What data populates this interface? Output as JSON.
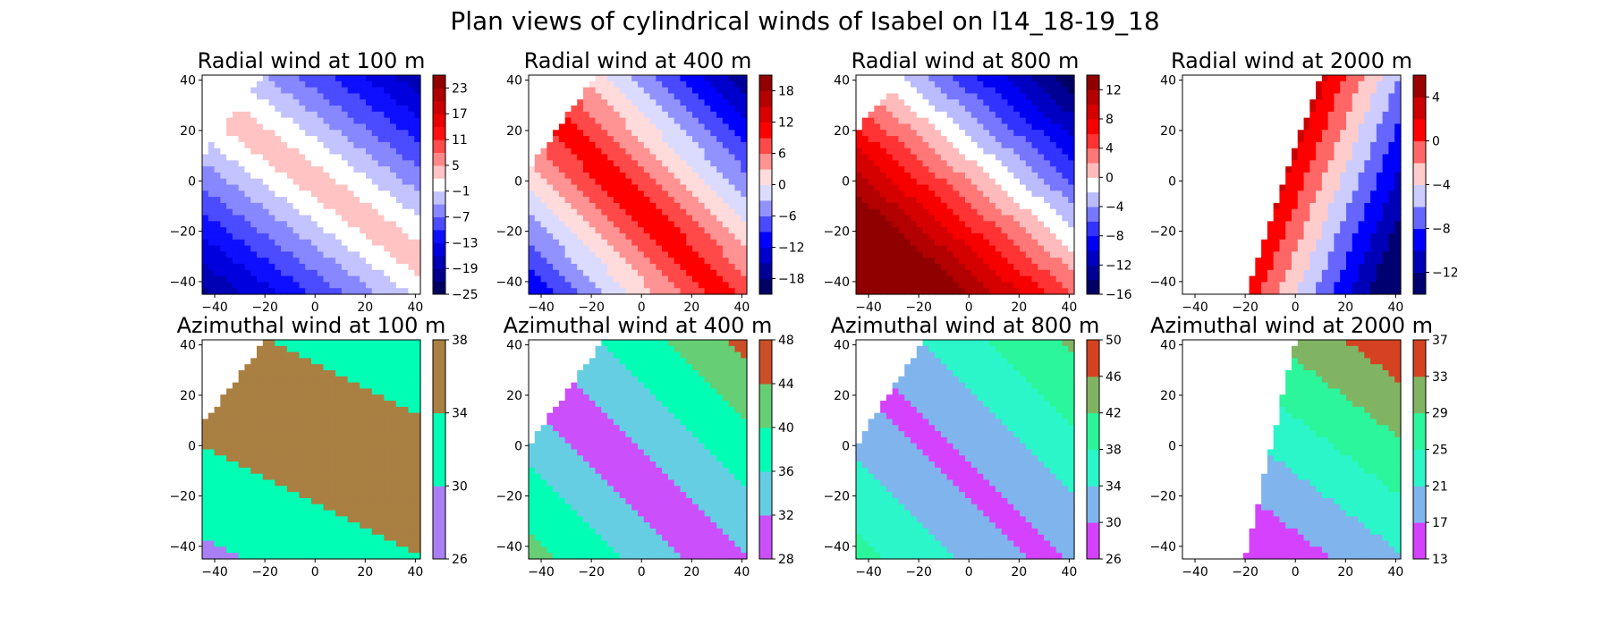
{
  "figure": {
    "title": "Plan views of cylindrical winds of Isabel on l14_18-19_18"
  },
  "chart_data": [
    {
      "type": "heatmap",
      "title": "Radial wind at 100 m",
      "xlim": [
        -45,
        42
      ],
      "ylim": [
        -45,
        42
      ],
      "xticks": [
        -40,
        -20,
        0,
        20,
        40
      ],
      "yticks": [
        -40,
        -20,
        0,
        20,
        40
      ],
      "colormap": "seismic",
      "levels": [
        -25,
        -22,
        -19,
        -16,
        -13,
        -10,
        -7,
        -4,
        -1,
        2,
        5,
        8,
        11,
        14,
        17,
        20,
        23,
        26
      ],
      "colorbar_ticks": [
        23,
        17,
        11,
        5,
        -1,
        -7,
        -13,
        -19,
        -25
      ],
      "field": {
        "model": "ridge",
        "dir": [
          0.6,
          0.8
        ],
        "mode": "abs",
        "base": 4,
        "scale": -0.38,
        "noData": [
          [
            -45,
            10
          ],
          [
            -20,
            42
          ]
        ]
      }
    },
    {
      "type": "heatmap",
      "title": "Radial wind at 400 m",
      "xlim": [
        -45,
        42
      ],
      "ylim": [
        -45,
        42
      ],
      "xticks": [
        -40,
        -20,
        0,
        20,
        40
      ],
      "yticks": [
        -40,
        -20,
        0,
        20,
        40
      ],
      "colormap": "seismic",
      "levels": [
        -21,
        -18,
        -15,
        -12,
        -9,
        -6,
        -3,
        0,
        3,
        6,
        9,
        12,
        15,
        18,
        21
      ],
      "colorbar_ticks": [
        18,
        12,
        6,
        0,
        -6,
        -12,
        -18
      ],
      "field": {
        "model": "ridge",
        "dir": [
          0.72,
          0.69
        ],
        "mode": "abs",
        "center": -8,
        "base": 11,
        "scale": -0.42,
        "noData": [
          [
            -45,
            5
          ],
          [
            -18,
            42
          ]
        ]
      }
    },
    {
      "type": "heatmap",
      "title": "Radial wind at 800 m",
      "xlim": [
        -45,
        42
      ],
      "ylim": [
        -45,
        42
      ],
      "xticks": [
        -40,
        -20,
        0,
        20,
        40
      ],
      "yticks": [
        -40,
        -20,
        0,
        20,
        40
      ],
      "colormap": "seismic",
      "levels": [
        -16,
        -14,
        -12,
        -10,
        -8,
        -6,
        -4,
        -2,
        0,
        2,
        4,
        6,
        8,
        10,
        12,
        14
      ],
      "colorbar_ticks": [
        12,
        8,
        4,
        0,
        -4,
        -8,
        -12,
        -16
      ],
      "field": {
        "model": "ridge",
        "dir": [
          0.66,
          0.75
        ],
        "mode": "linear",
        "base": 2,
        "scale": -0.3,
        "noData": [
          [
            -45,
            20
          ],
          [
            -25,
            42
          ]
        ]
      }
    },
    {
      "type": "heatmap",
      "title": "Radial wind at 2000 m",
      "xlim": [
        -45,
        42
      ],
      "ylim": [
        -45,
        42
      ],
      "xticks": [
        -40,
        -20,
        0,
        20,
        40
      ],
      "yticks": [
        -40,
        -20,
        0,
        20,
        40
      ],
      "colormap": "seismic",
      "levels": [
        -14,
        -12,
        -10,
        -8,
        -6,
        -4,
        -2,
        0,
        2,
        4,
        6
      ],
      "colorbar_ticks": [
        4,
        0,
        -4,
        -8,
        -12
      ],
      "field": {
        "model": "ridge",
        "dir": [
          0.93,
          -0.36
        ],
        "mode": "linear",
        "base": 1,
        "scale": -0.3,
        "noData": [
          [
            -20,
            -45
          ],
          [
            10,
            42
          ]
        ]
      }
    },
    {
      "type": "heatmap",
      "title": "Azimuthal wind at 100 m",
      "xlim": [
        -45,
        42
      ],
      "ylim": [
        -45,
        42
      ],
      "xticks": [
        -40,
        -20,
        0,
        20,
        40
      ],
      "yticks": [
        -40,
        -20,
        0,
        20,
        40
      ],
      "colormap": "rainbow",
      "levels": [
        26,
        30,
        34,
        38
      ],
      "colorbar_ticks": [
        38,
        34,
        30,
        26
      ],
      "field": {
        "model": "band",
        "dir": [
          0.45,
          0.9
        ],
        "mode": "abs",
        "center": 5,
        "base": 37,
        "scale": -0.12,
        "noData": [
          [
            -45,
            8
          ],
          [
            -20,
            42
          ]
        ]
      }
    },
    {
      "type": "heatmap",
      "title": "Azimuthal wind at 400 m",
      "xlim": [
        -45,
        42
      ],
      "ylim": [
        -45,
        42
      ],
      "xticks": [
        -40,
        -20,
        0,
        20,
        40
      ],
      "yticks": [
        -40,
        -20,
        0,
        20,
        40
      ],
      "colormap": "rainbow",
      "levels": [
        28,
        32,
        36,
        40,
        44,
        48
      ],
      "colorbar_ticks": [
        48,
        44,
        40,
        36,
        32,
        28
      ],
      "field": {
        "model": "band",
        "dir": [
          0.7,
          0.7
        ],
        "mode": "abs",
        "center": -10,
        "base": 30,
        "scale": 0.22,
        "noData": [
          [
            -45,
            0
          ],
          [
            -15,
            42
          ]
        ]
      }
    },
    {
      "type": "heatmap",
      "title": "Azimuthal wind at 800 m",
      "xlim": [
        -45,
        42
      ],
      "ylim": [
        -45,
        42
      ],
      "xticks": [
        -40,
        -20,
        0,
        20,
        40
      ],
      "yticks": [
        -40,
        -20,
        0,
        20,
        40
      ],
      "colormap": "rainbow",
      "levels": [
        26,
        30,
        34,
        38,
        42,
        46,
        50
      ],
      "colorbar_ticks": [
        50,
        46,
        42,
        38,
        34,
        30,
        26
      ],
      "field": {
        "model": "band",
        "dir": [
          0.7,
          0.7
        ],
        "mode": "abs",
        "center": -10,
        "base": 29,
        "scale": 0.2,
        "noData": [
          [
            -45,
            0
          ],
          [
            -18,
            42
          ]
        ]
      }
    },
    {
      "type": "heatmap",
      "title": "Azimuthal wind at 2000 m",
      "xlim": [
        -45,
        42
      ],
      "ylim": [
        -45,
        42
      ],
      "xticks": [
        -40,
        -20,
        0,
        20,
        40
      ],
      "yticks": [
        -40,
        -20,
        0,
        20,
        40
      ],
      "colormap": "rainbow",
      "levels": [
        13,
        17,
        21,
        25,
        29,
        33,
        37
      ],
      "colorbar_ticks": [
        37,
        33,
        29,
        25,
        21,
        17,
        13
      ],
      "field": {
        "model": "band",
        "dir": [
          0.6,
          0.8
        ],
        "mode": "linear",
        "base": 23,
        "scale": 0.22,
        "noData": [
          [
            -20,
            -45
          ],
          [
            0,
            42
          ]
        ]
      }
    }
  ]
}
